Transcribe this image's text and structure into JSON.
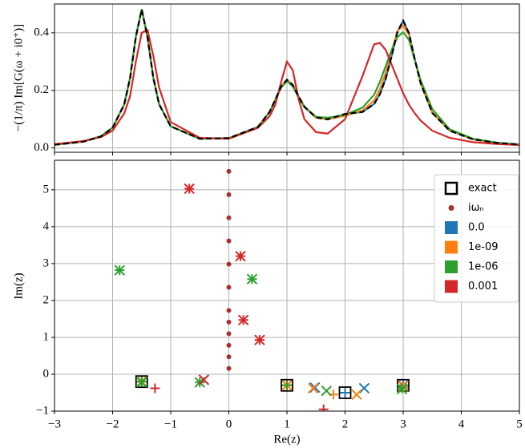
{
  "chart_data": [
    {
      "type": "line",
      "ylabel": "−(1/π) Im[G(ω + i0⁺)]",
      "xlim": [
        -3,
        5
      ],
      "ylim": [
        -0.015,
        0.5
      ],
      "yticks": [
        {
          "value": 0,
          "label": "0.0"
        },
        0.2,
        0.4
      ],
      "grid": true,
      "x": [
        -3,
        -2.5,
        -2.2,
        -2,
        -1.8,
        -1.7,
        -1.6,
        -1.5,
        -1.4,
        -1.3,
        -1.2,
        -1,
        -0.5,
        0,
        0.5,
        0.7,
        0.8,
        0.9,
        1,
        1.1,
        1.2,
        1.3,
        1.5,
        1.7,
        2,
        2.3,
        2.5,
        2.6,
        2.7,
        2.8,
        2.9,
        3,
        3.1,
        3.2,
        3.3,
        3.5,
        3.8,
        4.2,
        4.6,
        5
      ],
      "series": [
        {
          "color": "#1f77b4",
          "linestyle": "solid",
          "values": [
            0.011,
            0.022,
            0.04,
            0.07,
            0.151,
            0.243,
            0.386,
            0.481,
            0.386,
            0.243,
            0.152,
            0.075,
            0.032,
            0.034,
            0.073,
            0.125,
            0.168,
            0.214,
            0.237,
            0.219,
            0.179,
            0.143,
            0.106,
            0.099,
            0.118,
            0.125,
            0.153,
            0.187,
            0.241,
            0.318,
            0.403,
            0.442,
            0.398,
            0.308,
            0.225,
            0.122,
            0.06,
            0.03,
            0.018,
            0.012
          ]
        },
        {
          "color": "#ff7f0e",
          "linestyle": "solid",
          "values": [
            0.011,
            0.022,
            0.04,
            0.07,
            0.151,
            0.243,
            0.386,
            0.481,
            0.386,
            0.243,
            0.152,
            0.075,
            0.032,
            0.034,
            0.073,
            0.125,
            0.168,
            0.213,
            0.236,
            0.218,
            0.178,
            0.142,
            0.105,
            0.1,
            0.112,
            0.13,
            0.165,
            0.205,
            0.262,
            0.335,
            0.405,
            0.425,
            0.392,
            0.306,
            0.225,
            0.123,
            0.061,
            0.03,
            0.018,
            0.012
          ]
        },
        {
          "color": "#2ca02c",
          "linestyle": "solid",
          "values": [
            0.012,
            0.023,
            0.041,
            0.071,
            0.152,
            0.244,
            0.387,
            0.482,
            0.387,
            0.244,
            0.152,
            0.075,
            0.032,
            0.034,
            0.073,
            0.124,
            0.166,
            0.21,
            0.232,
            0.214,
            0.176,
            0.142,
            0.108,
            0.105,
            0.115,
            0.14,
            0.185,
            0.23,
            0.285,
            0.34,
            0.385,
            0.402,
            0.375,
            0.305,
            0.235,
            0.135,
            0.065,
            0.032,
            0.019,
            0.012
          ]
        },
        {
          "color": "#d62728",
          "linestyle": "solid",
          "values": [
            0.013,
            0.024,
            0.038,
            0.06,
            0.12,
            0.18,
            0.3,
            0.4,
            0.41,
            0.32,
            0.21,
            0.09,
            0.035,
            0.032,
            0.07,
            0.11,
            0.15,
            0.23,
            0.3,
            0.27,
            0.17,
            0.1,
            0.055,
            0.05,
            0.1,
            0.25,
            0.36,
            0.365,
            0.34,
            0.29,
            0.24,
            0.19,
            0.15,
            0.12,
            0.095,
            0.06,
            0.035,
            0.02,
            0.014,
            0.01
          ]
        },
        {
          "color": "#000000",
          "linestyle": "dashed",
          "values": [
            0.011,
            0.022,
            0.04,
            0.07,
            0.151,
            0.243,
            0.386,
            0.481,
            0.386,
            0.243,
            0.152,
            0.075,
            0.032,
            0.034,
            0.073,
            0.125,
            0.168,
            0.214,
            0.237,
            0.219,
            0.179,
            0.143,
            0.106,
            0.099,
            0.118,
            0.125,
            0.153,
            0.187,
            0.241,
            0.318,
            0.403,
            0.442,
            0.398,
            0.308,
            0.225,
            0.122,
            0.06,
            0.03,
            0.018,
            0.012
          ]
        }
      ]
    },
    {
      "type": "scatter",
      "xlabel": "Re(z)",
      "ylabel": "Im(z)",
      "xlim": [
        -3,
        5
      ],
      "ylim": [
        -1,
        5.8
      ],
      "xticks": [
        {
          "value": -3,
          "label": "−3"
        },
        {
          "value": -2,
          "label": "−2"
        },
        {
          "value": -1,
          "label": "−1"
        },
        0,
        1,
        2,
        3,
        4,
        5
      ],
      "yticks": [
        {
          "value": -1,
          "label": "−1"
        },
        0,
        1,
        2,
        3,
        4,
        5
      ],
      "grid": true,
      "legend": "upper right",
      "series": [
        {
          "name": "exact",
          "color": "#000000",
          "markers": [
            "square",
            "square",
            "square",
            "square"
          ],
          "x": [
            -1.5,
            1,
            2,
            3
          ],
          "y": [
            -0.2,
            -0.3,
            -0.5,
            -0.3
          ]
        },
        {
          "name": "iωₙ",
          "color": "#a83232",
          "markers": [
            "dot",
            "dot",
            "dot",
            "dot",
            "dot",
            "dot",
            "dot",
            "dot",
            "dot",
            "dot",
            "dot",
            "dot"
          ],
          "x": [
            0,
            0,
            0,
            0,
            0,
            0,
            0,
            0,
            0,
            0,
            0,
            0
          ],
          "y": [
            0.157,
            0.471,
            0.785,
            1.1,
            1.414,
            1.728,
            2.356,
            2.985,
            3.613,
            4.241,
            4.869,
            5.498
          ]
        },
        {
          "name": "0.0",
          "color": "#1f77b4",
          "markers": [
            "x",
            "x",
            "x",
            "x",
            "x",
            "+",
            "+",
            "+",
            "+"
          ],
          "x": [
            -1.5,
            1,
            1.48,
            2.33,
            3,
            -1.5,
            1,
            2,
            3
          ],
          "y": [
            -0.2,
            -0.3,
            -0.36,
            -0.38,
            -0.3,
            -0.2,
            -0.3,
            -0.5,
            -0.3
          ]
        },
        {
          "name": "1e-09",
          "color": "#ff7f0e",
          "markers": [
            "x",
            "x",
            "x",
            "x",
            "x",
            "+",
            "+",
            "+",
            "+"
          ],
          "x": [
            -1.5,
            1,
            1.45,
            2.2,
            3,
            -1.5,
            1,
            1.8,
            3
          ],
          "y": [
            -0.2,
            -0.3,
            -0.38,
            -0.55,
            -0.32,
            -0.2,
            -0.3,
            -0.55,
            -0.35
          ]
        },
        {
          "name": "1e-06",
          "color": "#2ca02c",
          "markers": [
            "x",
            "x",
            "x",
            "x",
            "x",
            "x",
            "+",
            "+",
            "+",
            "+",
            "+",
            "+"
          ],
          "x": [
            -1.88,
            0.4,
            -0.5,
            1.68,
            -1.5,
            2.98,
            -1.88,
            0.4,
            -0.5,
            -1.5,
            1,
            2.98
          ],
          "y": [
            2.82,
            2.58,
            -0.22,
            -0.45,
            -0.22,
            -0.4,
            2.82,
            2.58,
            -0.22,
            -0.2,
            -0.3,
            -0.38
          ]
        },
        {
          "name": "0.001",
          "color": "#d62728",
          "markers": [
            "x",
            "x",
            "x",
            "x",
            "x",
            "+",
            "+",
            "+",
            "+",
            "+",
            "+"
          ],
          "x": [
            -0.68,
            0.2,
            0.25,
            0.53,
            -0.43,
            -0.68,
            0.2,
            0.25,
            0.53,
            -1.27,
            1.63
          ],
          "y": [
            5.03,
            3.2,
            1.47,
            0.93,
            -0.15,
            5.03,
            3.2,
            1.47,
            0.93,
            -0.38,
            -0.95
          ]
        }
      ]
    }
  ]
}
